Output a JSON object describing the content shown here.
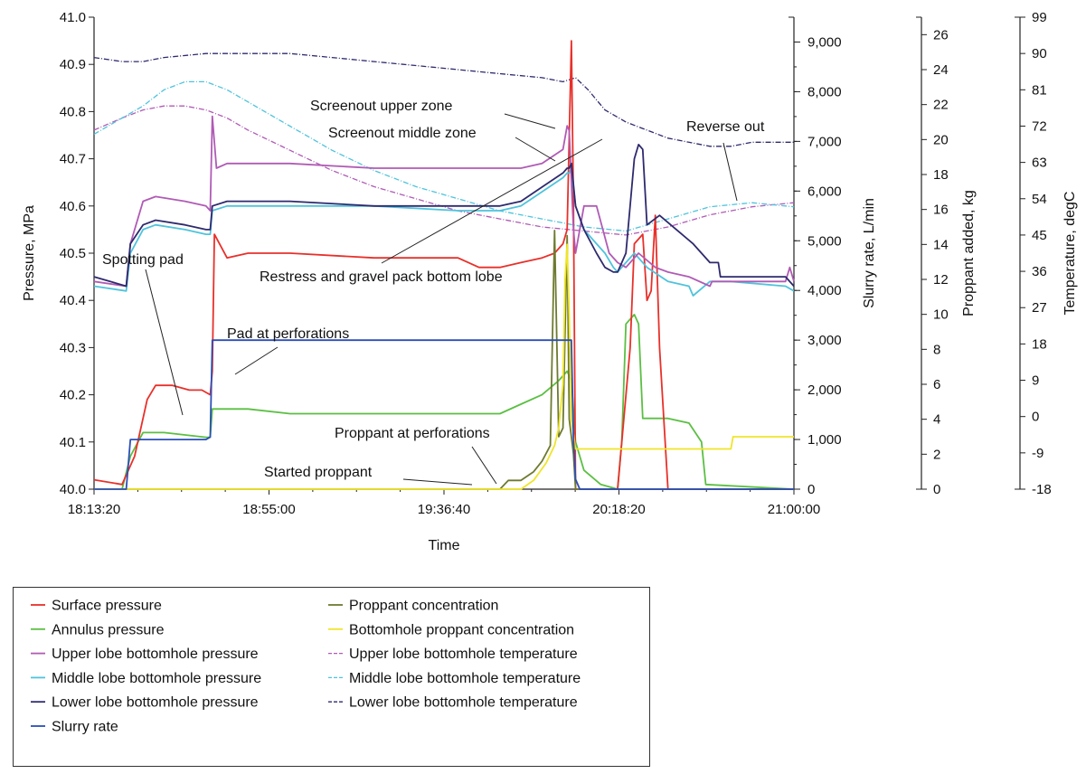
{
  "chart_data": {
    "type": "line",
    "title": "",
    "xlabel": "Time",
    "x_ticks": [
      "18:13:20",
      "18:55:00",
      "19:36:40",
      "20:18:20",
      "21:00:00"
    ],
    "xlim": [
      "18:13:20",
      "21:00:00"
    ],
    "axes": [
      {
        "id": "pressure",
        "label": "Pressure, MPa",
        "range": [
          40.0,
          41.0
        ],
        "ticks": [
          "40.0",
          "40.1",
          "40.2",
          "40.3",
          "40.4",
          "40.5",
          "40.6",
          "40.7",
          "40.8",
          "40.9",
          "41.0"
        ]
      },
      {
        "id": "rate",
        "label": "Slurry rate, L/min",
        "range": [
          0,
          9500
        ],
        "ticks": [
          "0",
          "1,000",
          "2,000",
          "3,000",
          "4,000",
          "5,000",
          "6,000",
          "7,000",
          "8,000",
          "9,000"
        ]
      },
      {
        "id": "proppant",
        "label": "Proppant added, kg",
        "range": [
          0,
          27
        ],
        "ticks": [
          "0",
          "2",
          "4",
          "6",
          "8",
          "10",
          "12",
          "14",
          "16",
          "18",
          "20",
          "22",
          "24",
          "26"
        ]
      },
      {
        "id": "temperature",
        "label": "Temperature, degC",
        "range": [
          -18,
          99
        ],
        "ticks": [
          "-18",
          "-9",
          "0",
          "9",
          "18",
          "27",
          "36",
          "45",
          "54",
          "63",
          "72",
          "81",
          "90",
          "99"
        ]
      }
    ],
    "series": [
      {
        "name": "Surface pressure",
        "color": "#e8302a",
        "dash": "solid",
        "axis": "pressure",
        "x": [
          "18:13:20",
          "18:20:00",
          "18:23:00",
          "18:26:00",
          "18:28:00",
          "18:32:00",
          "18:36:00",
          "18:39:00",
          "18:41:00",
          "18:41:30",
          "18:42:00",
          "18:45:00",
          "18:50:00",
          "19:00:00",
          "19:20:00",
          "19:40:00",
          "19:45:00",
          "19:50:00",
          "19:55:00",
          "20:00:00",
          "20:03:00",
          "20:05:00",
          "20:06:00",
          "20:07:00",
          "20:07:30",
          "20:08:00",
          "20:08:30",
          "20:09:00",
          "20:11:00",
          "20:14:00",
          "20:17:00",
          "20:18:00",
          "20:21:00",
          "20:22:00",
          "20:24:00",
          "20:25:00",
          "20:26:00",
          "20:27:00",
          "20:28:00",
          "20:30:00",
          "21:00:00"
        ],
        "y": [
          40.02,
          40.01,
          40.07,
          40.19,
          40.22,
          40.22,
          40.21,
          40.21,
          40.2,
          40.25,
          40.54,
          40.49,
          40.5,
          40.5,
          40.49,
          40.49,
          40.47,
          40.47,
          40.48,
          40.49,
          40.5,
          40.52,
          40.55,
          40.95,
          40.6,
          40.0,
          40.0,
          40.0,
          40.0,
          40.0,
          40.0,
          40.0,
          40.3,
          40.52,
          40.54,
          40.4,
          40.42,
          40.58,
          40.3,
          40.0,
          40.0
        ]
      },
      {
        "name": "Annulus pressure",
        "color": "#5bbf43",
        "dash": "solid",
        "axis": "pressure",
        "x": [
          "18:13:20",
          "18:20:00",
          "18:22:00",
          "18:25:00",
          "18:30:00",
          "18:40:00",
          "18:41:00",
          "18:41:30",
          "18:50:00",
          "19:00:00",
          "19:20:00",
          "19:40:00",
          "19:50:00",
          "19:55:00",
          "20:00:00",
          "20:04:00",
          "20:06:00",
          "20:07:00",
          "20:08:00",
          "20:10:00",
          "20:14:00",
          "20:18:00",
          "20:19:00",
          "20:20:00",
          "20:22:00",
          "20:23:00",
          "20:24:00",
          "20:25:00",
          "20:30:00",
          "20:35:00",
          "20:38:00",
          "20:39:00",
          "21:00:00"
        ],
        "y": [
          40.0,
          40.0,
          40.07,
          40.12,
          40.12,
          40.11,
          40.11,
          40.17,
          40.17,
          40.16,
          40.16,
          40.16,
          40.16,
          40.18,
          40.2,
          40.23,
          40.25,
          40.23,
          40.1,
          40.04,
          40.01,
          40.0,
          40.1,
          40.35,
          40.37,
          40.35,
          40.15,
          40.15,
          40.15,
          40.14,
          40.1,
          40.01,
          40.0
        ]
      },
      {
        "name": "Upper lobe bottomhole pressure",
        "color": "#b05bb5",
        "dash": "solid",
        "axis": "pressure",
        "x": [
          "18:13:20",
          "18:21:00",
          "18:22:00",
          "18:25:00",
          "18:28:00",
          "18:35:00",
          "18:40:00",
          "18:41:00",
          "18:41:30",
          "18:42:30",
          "18:45:00",
          "18:50:00",
          "19:00:00",
          "19:20:00",
          "19:40:00",
          "19:50:00",
          "19:55:00",
          "20:00:00",
          "20:05:00",
          "20:06:00",
          "20:06:30",
          "20:07:00",
          "20:07:30",
          "20:08:00",
          "20:10:00",
          "20:13:00",
          "20:16:00",
          "20:18:00",
          "20:20:00",
          "20:23:00",
          "20:27:00",
          "20:30:00",
          "20:35:00",
          "20:40:00",
          "20:40:30",
          "20:50:00",
          "20:58:00",
          "20:59:00",
          "21:00:00"
        ],
        "y": [
          40.44,
          40.43,
          40.52,
          40.61,
          40.62,
          40.61,
          40.6,
          40.59,
          40.79,
          40.68,
          40.69,
          40.69,
          40.69,
          40.68,
          40.68,
          40.68,
          40.68,
          40.69,
          40.72,
          40.77,
          40.76,
          40.65,
          40.55,
          40.5,
          40.6,
          40.6,
          40.5,
          40.48,
          40.47,
          40.5,
          40.47,
          40.46,
          40.45,
          40.43,
          40.44,
          40.44,
          40.44,
          40.47,
          40.44
        ]
      },
      {
        "name": "Middle lobe bottomhole pressure",
        "color": "#4fc3dc",
        "dash": "solid",
        "axis": "pressure",
        "x": [
          "18:13:20",
          "18:21:00",
          "18:22:00",
          "18:25:00",
          "18:28:00",
          "18:35:00",
          "18:40:00",
          "18:41:00",
          "18:41:30",
          "18:45:00",
          "18:50:00",
          "19:00:00",
          "19:20:00",
          "19:40:00",
          "19:50:00",
          "19:55:00",
          "20:00:00",
          "20:05:00",
          "20:06:00",
          "20:06:30",
          "20:07:00",
          "20:08:00",
          "20:10:00",
          "20:13:00",
          "20:15:00",
          "20:17:00",
          "20:18:00",
          "20:20:00",
          "20:22:00",
          "20:25:00",
          "20:30:00",
          "20:35:00",
          "20:36:00",
          "20:40:00",
          "20:45:00",
          "20:58:00",
          "21:00:00"
        ],
        "y": [
          40.43,
          40.42,
          40.5,
          40.55,
          40.56,
          40.55,
          40.54,
          40.54,
          40.59,
          40.6,
          40.6,
          40.6,
          40.6,
          40.59,
          40.59,
          40.6,
          40.63,
          40.66,
          40.67,
          40.67,
          40.68,
          40.6,
          40.55,
          40.52,
          40.5,
          40.47,
          40.46,
          40.48,
          40.5,
          40.47,
          40.44,
          40.43,
          40.41,
          40.44,
          40.44,
          40.43,
          40.42
        ]
      },
      {
        "name": "Lower lobe bottomhole pressure",
        "color": "#2e2a6e",
        "dash": "solid",
        "axis": "pressure",
        "x": [
          "18:13:20",
          "18:21:00",
          "18:22:00",
          "18:25:00",
          "18:28:00",
          "18:35:00",
          "18:40:00",
          "18:41:00",
          "18:41:30",
          "18:45:00",
          "18:50:00",
          "19:00:00",
          "19:20:00",
          "19:40:00",
          "19:50:00",
          "19:55:00",
          "20:00:00",
          "20:05:00",
          "20:06:00",
          "20:06:30",
          "20:07:00",
          "20:08:00",
          "20:10:00",
          "20:13:00",
          "20:15:00",
          "20:17:00",
          "20:18:00",
          "20:20:00",
          "20:22:00",
          "20:23:00",
          "20:24:00",
          "20:25:00",
          "20:28:00",
          "20:32:00",
          "20:36:00",
          "20:38:00",
          "20:40:00",
          "20:42:00",
          "20:42:30",
          "20:58:00",
          "21:00:00"
        ],
        "y": [
          40.45,
          40.43,
          40.52,
          40.56,
          40.57,
          40.56,
          40.55,
          40.55,
          40.6,
          40.61,
          40.61,
          40.61,
          40.6,
          40.6,
          40.6,
          40.61,
          40.64,
          40.67,
          40.68,
          40.68,
          40.69,
          40.6,
          40.55,
          40.5,
          40.47,
          40.46,
          40.46,
          40.5,
          40.7,
          40.73,
          40.72,
          40.56,
          40.58,
          40.55,
          40.52,
          40.5,
          40.48,
          40.48,
          40.45,
          40.45,
          40.43
        ]
      },
      {
        "name": "Slurry rate",
        "color": "#2b4fb8",
        "dash": "solid",
        "axis": "rate",
        "x": [
          "18:13:20",
          "18:21:00",
          "18:22:00",
          "18:30:00",
          "18:40:00",
          "18:41:00",
          "18:41:30",
          "18:45:00",
          "19:00:00",
          "19:30:00",
          "20:00:00",
          "20:06:00",
          "20:07:00",
          "20:07:30",
          "20:08:00",
          "20:09:00",
          "20:12:00",
          "20:15:00",
          "21:00:00"
        ],
        "y": [
          0,
          0,
          1000,
          1000,
          1000,
          1050,
          3000,
          3000,
          3000,
          3000,
          3000,
          3000,
          3000,
          1000,
          200,
          0,
          0,
          0,
          0
        ]
      },
      {
        "name": "Proppant concentration",
        "color": "#6e7a2f",
        "dash": "solid",
        "axis": "proppant",
        "x": [
          "18:13:20",
          "19:50:00",
          "19:52:00",
          "19:55:00",
          "19:58:00",
          "20:00:00",
          "20:02:00",
          "20:03:00",
          "20:04:00",
          "20:05:00",
          "20:06:00",
          "20:06:30",
          "20:07:00",
          "20:07:30",
          "20:08:00",
          "20:10:00",
          "20:15:00",
          "20:20:00",
          "21:00:00"
        ],
        "y": [
          0,
          0,
          0.5,
          0.5,
          1,
          1.6,
          2.5,
          14.8,
          3,
          3.5,
          14.5,
          4,
          3,
          2,
          0,
          0,
          0,
          0,
          0
        ]
      },
      {
        "name": "Bottomhole proppant concentration",
        "color": "#efe52a",
        "dash": "solid",
        "axis": "proppant",
        "x": [
          "18:13:20",
          "19:55:00",
          "19:58:00",
          "20:01:00",
          "20:03:00",
          "20:04:00",
          "20:05:00",
          "20:05:30",
          "20:06:00",
          "20:06:30",
          "20:07:00",
          "20:08:00",
          "20:10:00",
          "20:14:00",
          "20:20:00",
          "20:30:00",
          "20:40:00",
          "20:45:00",
          "20:45:30",
          "20:50:00",
          "21:00:00"
        ],
        "y": [
          0,
          0,
          0.5,
          1.5,
          2.5,
          3.5,
          6,
          12,
          14,
          10,
          4,
          2.3,
          2.3,
          2.3,
          2.3,
          2.3,
          2.3,
          2.3,
          3,
          3,
          3
        ]
      },
      {
        "name": "Upper lobe bottomhole temperature",
        "color": "#b05bb5",
        "dash": "dashed",
        "axis": "temperature",
        "x": [
          "18:13:20",
          "18:20:00",
          "18:25:00",
          "18:30:00",
          "18:35:00",
          "18:40:00",
          "18:45:00",
          "18:50:00",
          "19:00:00",
          "19:10:00",
          "19:20:00",
          "19:30:00",
          "19:40:00",
          "19:50:00",
          "20:00:00",
          "20:10:00",
          "20:20:00",
          "20:30:00",
          "20:40:00",
          "20:50:00",
          "21:00:00"
        ],
        "y": [
          71,
          74,
          76,
          77,
          77,
          76,
          74,
          71,
          66,
          61,
          57,
          54,
          51,
          49,
          47,
          46,
          45,
          47,
          50,
          52,
          53
        ]
      },
      {
        "name": "Middle lobe bottomhole temperature",
        "color": "#4fc3dc",
        "dash": "dashed",
        "axis": "temperature",
        "x": [
          "18:13:20",
          "18:20:00",
          "18:25:00",
          "18:30:00",
          "18:35:00",
          "18:40:00",
          "18:45:00",
          "18:50:00",
          "19:00:00",
          "19:10:00",
          "19:20:00",
          "19:30:00",
          "19:40:00",
          "19:50:00",
          "20:00:00",
          "20:10:00",
          "20:20:00",
          "20:30:00",
          "20:40:00",
          "20:50:00",
          "21:00:00"
        ],
        "y": [
          70,
          74,
          77,
          81,
          83,
          83,
          81,
          78,
          72,
          66,
          61,
          57,
          54,
          51,
          49,
          47,
          46,
          49,
          52,
          53,
          52
        ]
      },
      {
        "name": "Lower lobe bottomhole temperature",
        "color": "#2e2a6e",
        "dash": "dashed",
        "axis": "temperature",
        "x": [
          "18:13:20",
          "18:20:00",
          "18:25:00",
          "18:30:00",
          "18:40:00",
          "18:50:00",
          "19:00:00",
          "19:10:00",
          "19:20:00",
          "19:30:00",
          "19:40:00",
          "19:50:00",
          "20:00:00",
          "20:05:00",
          "20:08:00",
          "20:11:00",
          "20:15:00",
          "20:20:00",
          "20:30:00",
          "20:40:00",
          "20:45:00",
          "20:50:00",
          "21:00:00"
        ],
        "y": [
          89,
          88,
          88,
          89,
          90,
          90,
          90,
          89,
          88,
          87,
          86,
          85,
          84,
          83,
          84,
          81,
          76,
          73,
          69,
          67,
          67,
          68,
          68
        ]
      }
    ],
    "annotations": [
      "Screenout upper zone",
      "Screenout middle zone",
      "Reverse out",
      "Restress and gravel pack bottom lobe",
      "Spotting pad",
      "Pad at perforations",
      "Proppant at perforations",
      "Started proppant"
    ],
    "legend": {
      "placement": "bottom-left",
      "columns": [
        [
          "Surface pressure",
          "Annulus pressure",
          "Upper lobe bottomhole pressure",
          "Middle lobe bottomhole pressure",
          "Lower lobe bottomhole pressure",
          "Slurry rate"
        ],
        [
          "Proppant concentration",
          "Bottomhole proppant concentration",
          "Upper lobe bottomhole temperature",
          "Middle lobe bottomhole temperature",
          "Lower lobe bottomhole temperature"
        ]
      ]
    },
    "grid": false
  }
}
